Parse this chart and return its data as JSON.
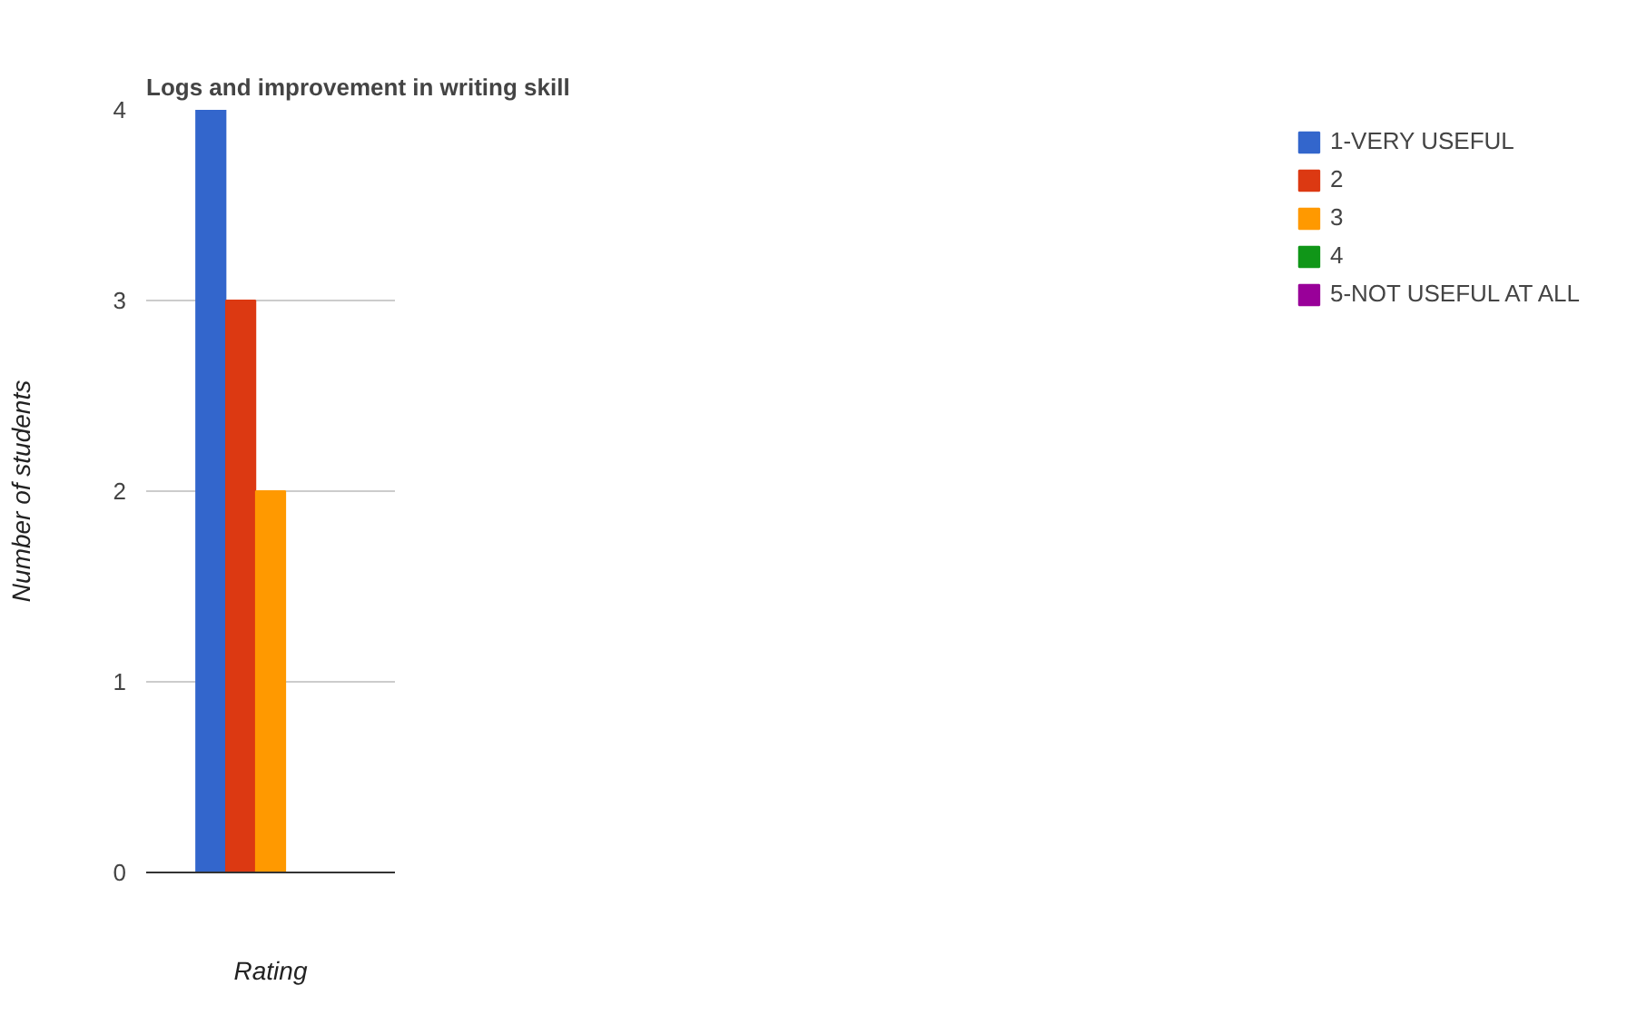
{
  "chart_data": {
    "type": "bar",
    "title": "Logs and improvement in writing skill",
    "xlabel": "Rating",
    "ylabel": "Number of students",
    "categories": [
      null
    ],
    "series": [
      {
        "name": "1-VERY USEFUL",
        "color": "#3366cc",
        "values": [
          4
        ]
      },
      {
        "name": "2",
        "color": "#dc3912",
        "values": [
          3
        ]
      },
      {
        "name": "3",
        "color": "#ff9900",
        "values": [
          2
        ]
      },
      {
        "name": "4",
        "color": "#109618",
        "values": [
          0
        ]
      },
      {
        "name": "5-NOT USEFUL AT ALL",
        "color": "#990099",
        "values": [
          0
        ]
      }
    ],
    "ylim": [
      0,
      4
    ],
    "yticks": [
      0,
      1,
      2,
      3,
      4
    ],
    "grid": "y",
    "legend": "right"
  }
}
